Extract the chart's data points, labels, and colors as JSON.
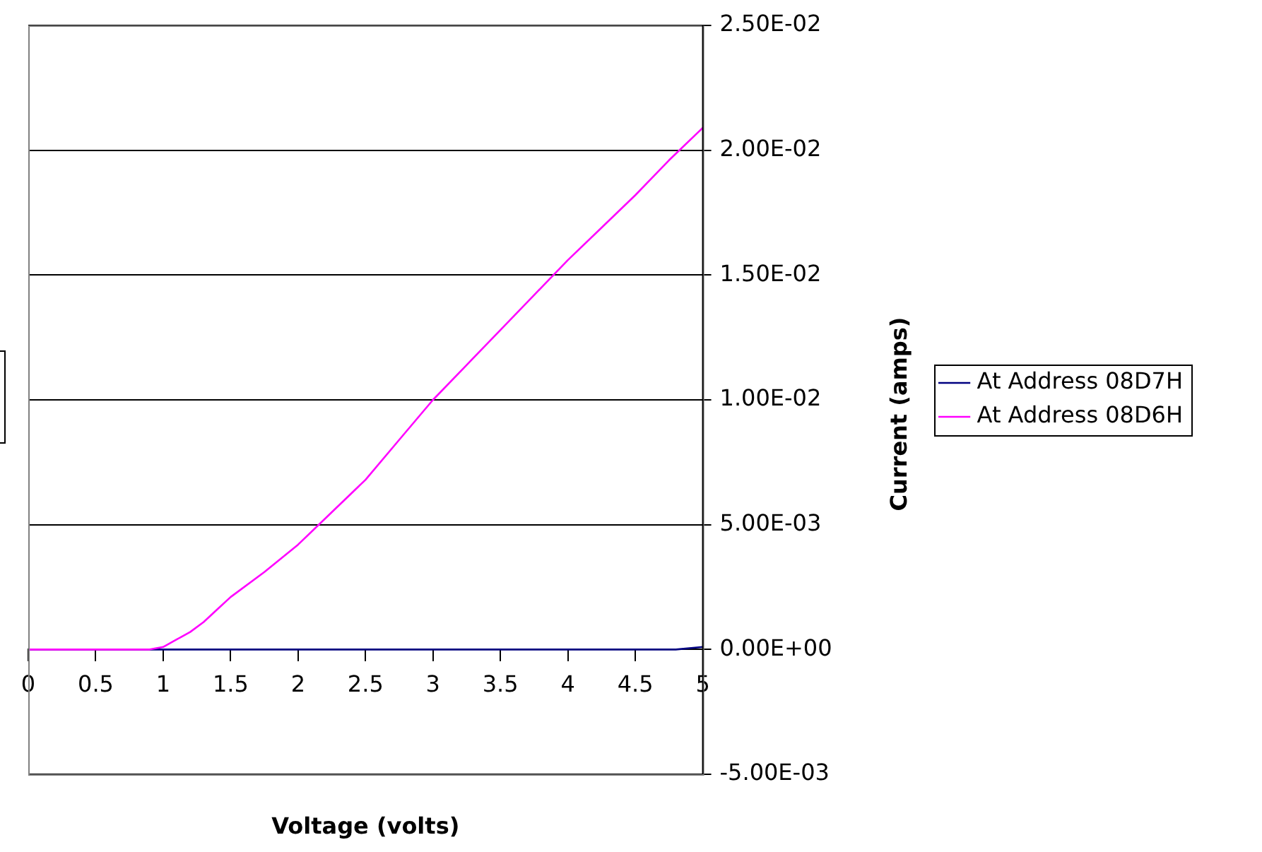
{
  "chart_data": {
    "type": "line",
    "xlabel": "Voltage (volts)",
    "ylabel": "Current (amps)",
    "xlim": [
      0,
      5
    ],
    "xticks": [
      0,
      0.5,
      1,
      1.5,
      2,
      2.5,
      3,
      3.5,
      4,
      4.5,
      5
    ],
    "ylim": [
      -0.005,
      0.025
    ],
    "yticks": [
      {
        "value": -0.005,
        "label": "-5.00E-03"
      },
      {
        "value": 0,
        "label": "0.00E+00"
      },
      {
        "value": 0.005,
        "label": "5.00E-03"
      },
      {
        "value": 0.01,
        "label": "1.00E-02"
      },
      {
        "value": 0.015,
        "label": "1.50E-02"
      },
      {
        "value": 0.02,
        "label": "2.00E-02"
      },
      {
        "value": 0.025,
        "label": "2.50E-02"
      }
    ],
    "grid": "y",
    "legend": "right",
    "marker": "none",
    "line_style": "solid",
    "series": [
      {
        "name": "At Address 08D7H",
        "color": "#000080",
        "x": [
          0,
          0.5,
          1,
          1.5,
          2,
          2.5,
          3,
          3.5,
          4,
          4.5,
          4.8,
          5
        ],
        "values": [
          0,
          0,
          0,
          0,
          0,
          0,
          0,
          0,
          0,
          0,
          0,
          0.0001
        ]
      },
      {
        "name": "At Address 08D6H",
        "color": "#ff00ff",
        "x": [
          0,
          0.5,
          0.8,
          0.9,
          1,
          1.1,
          1.2,
          1.3,
          1.4,
          1.5,
          1.75,
          2,
          2.25,
          2.5,
          2.75,
          3,
          3.25,
          3.5,
          3.75,
          4,
          4.25,
          4.5,
          4.75,
          5
        ],
        "values": [
          0,
          0,
          0,
          0,
          0.0001,
          0.0004,
          0.0007,
          0.0011,
          0.0016,
          0.0021,
          0.0031,
          0.0042,
          0.0055,
          0.0068,
          0.0084,
          0.01,
          0.0114,
          0.0128,
          0.0142,
          0.0156,
          0.0169,
          0.0182,
          0.0196,
          0.0209
        ]
      }
    ]
  }
}
